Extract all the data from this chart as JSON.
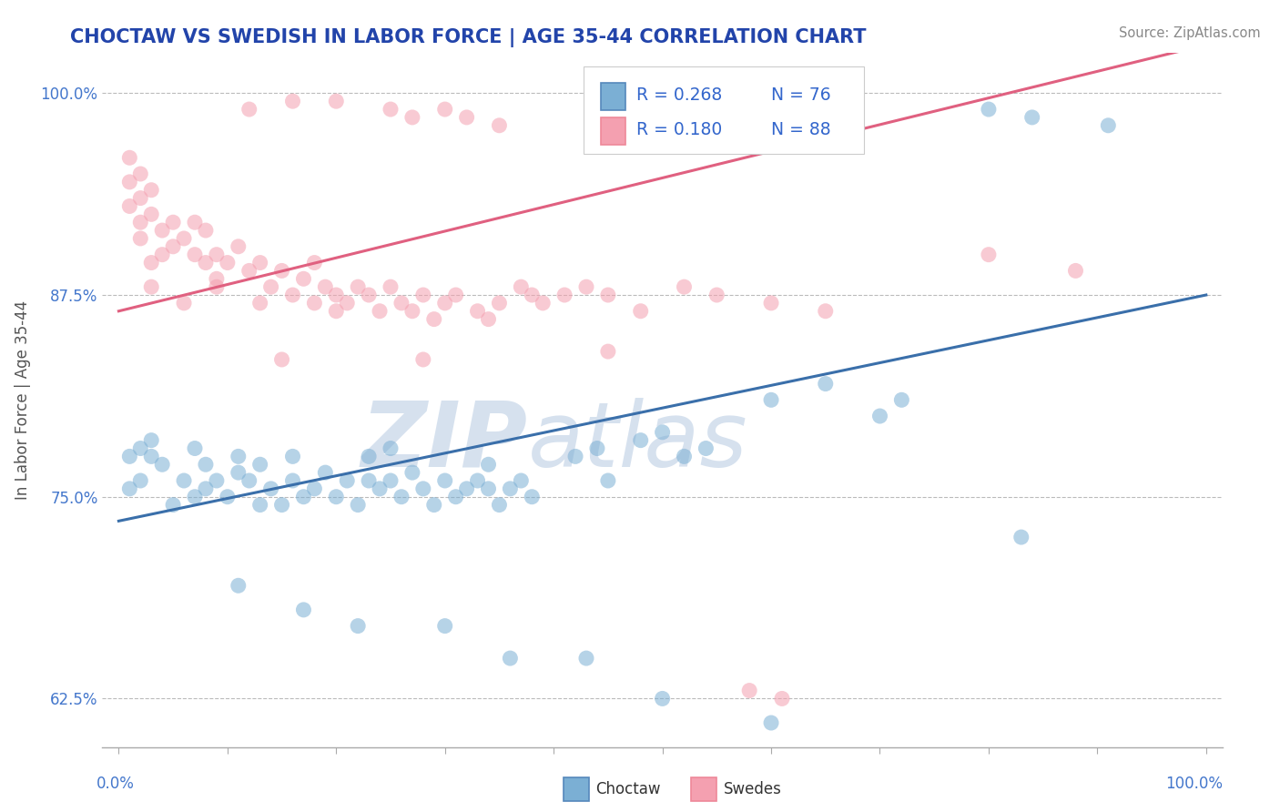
{
  "title": "CHOCTAW VS SWEDISH IN LABOR FORCE | AGE 35-44 CORRELATION CHART",
  "source": "Source: ZipAtlas.com",
  "ylabel": "In Labor Force | Age 35-44",
  "yticks": [
    0.625,
    0.75,
    0.875,
    1.0
  ],
  "ytick_labels": [
    "62.5%",
    "75.0%",
    "87.5%",
    "100.0%"
  ],
  "legend_R1": "R = 0.268",
  "legend_N1": "N = 76",
  "legend_R2": "R = 0.180",
  "legend_N2": "N = 88",
  "choctaw_color": "#7BAFD4",
  "swedes_color": "#F4A0B0",
  "choctaw_line_color": "#3A6FAA",
  "swedes_line_color": "#E06080",
  "watermark_zip": "ZIP",
  "watermark_atlas": "atlas",
  "watermark_color_zip": "#C8D8EE",
  "watermark_color_atlas": "#C0D0E8"
}
